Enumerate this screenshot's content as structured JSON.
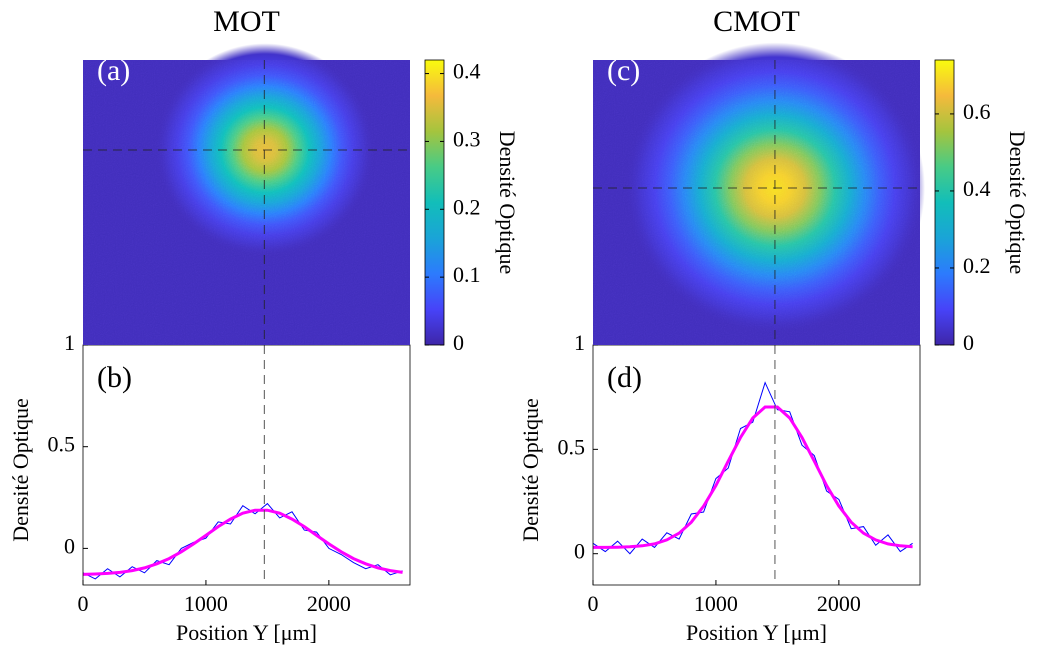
{
  "chart_data": [
    {
      "type": "heatmap",
      "title": "MOT",
      "label": "(a)",
      "colormap": "parula",
      "clim": [
        0,
        0.42
      ],
      "cticks": [
        0,
        0.1,
        0.2,
        0.3,
        0.4
      ],
      "colorbar_label": "Densité Optique",
      "peak": 0.36
    },
    {
      "type": "line",
      "label": "(b)",
      "xlabel": "Position Y [μm]",
      "ylabel": "Densité Optique",
      "xlim": [
        0,
        2660
      ],
      "ylim": [
        -0.18,
        1
      ],
      "xticks": [
        0,
        1000,
        2000
      ],
      "yticks": [
        0,
        0.5,
        1
      ],
      "vline": 1475,
      "x": [
        0,
        100,
        200,
        300,
        400,
        500,
        600,
        700,
        800,
        900,
        1000,
        1100,
        1200,
        1300,
        1400,
        1500,
        1600,
        1700,
        1800,
        1900,
        2000,
        2100,
        2200,
        2300,
        2400,
        2500,
        2600
      ],
      "series": [
        {
          "color": "#0000ff",
          "values": [
            -0.12,
            -0.15,
            -0.1,
            -0.14,
            -0.09,
            -0.12,
            -0.06,
            -0.08,
            0.0,
            0.03,
            0.05,
            0.13,
            0.12,
            0.21,
            0.17,
            0.22,
            0.15,
            0.18,
            0.09,
            0.08,
            0.0,
            -0.03,
            -0.07,
            -0.1,
            -0.08,
            -0.13,
            -0.11
          ]
        },
        {
          "color": "#ff00ff",
          "values": [
            -0.128,
            -0.126,
            -0.123,
            -0.118,
            -0.109,
            -0.096,
            -0.076,
            -0.05,
            -0.017,
            0.022,
            0.064,
            0.107,
            0.144,
            0.173,
            0.188,
            0.188,
            0.173,
            0.144,
            0.107,
            0.064,
            0.022,
            -0.017,
            -0.05,
            -0.076,
            -0.096,
            -0.109,
            -0.118
          ]
        }
      ]
    },
    {
      "type": "heatmap",
      "title": "CMOT",
      "label": "(c)",
      "colormap": "parula",
      "clim": [
        0,
        0.74
      ],
      "cticks": [
        0,
        0.2,
        0.4,
        0.6
      ],
      "colorbar_label": "Densité Optique",
      "peak": 0.7
    },
    {
      "type": "line",
      "label": "(d)",
      "xlabel": "Position Y [μm]",
      "ylabel": "Densité Optique",
      "xlim": [
        0,
        2660
      ],
      "ylim": [
        -0.15,
        1
      ],
      "xticks": [
        0,
        1000,
        2000
      ],
      "yticks": [
        0,
        0.5,
        1
      ],
      "vline": 1480,
      "x": [
        0,
        100,
        200,
        300,
        400,
        500,
        600,
        700,
        800,
        900,
        1000,
        1100,
        1200,
        1300,
        1400,
        1500,
        1600,
        1700,
        1800,
        1900,
        2000,
        2100,
        2200,
        2300,
        2400,
        2500,
        2600
      ],
      "series": [
        {
          "color": "#0000ff",
          "values": [
            0.05,
            0.01,
            0.06,
            0.0,
            0.07,
            0.03,
            0.1,
            0.07,
            0.19,
            0.2,
            0.36,
            0.41,
            0.6,
            0.63,
            0.82,
            0.69,
            0.68,
            0.52,
            0.47,
            0.3,
            0.26,
            0.12,
            0.13,
            0.04,
            0.09,
            0.01,
            0.05
          ]
        },
        {
          "color": "#ff00ff",
          "values": [
            0.03,
            0.03,
            0.031,
            0.033,
            0.038,
            0.047,
            0.066,
            0.098,
            0.151,
            0.228,
            0.327,
            0.443,
            0.557,
            0.65,
            0.703,
            0.703,
            0.65,
            0.557,
            0.443,
            0.327,
            0.228,
            0.151,
            0.098,
            0.066,
            0.047,
            0.038,
            0.033
          ]
        }
      ]
    }
  ]
}
